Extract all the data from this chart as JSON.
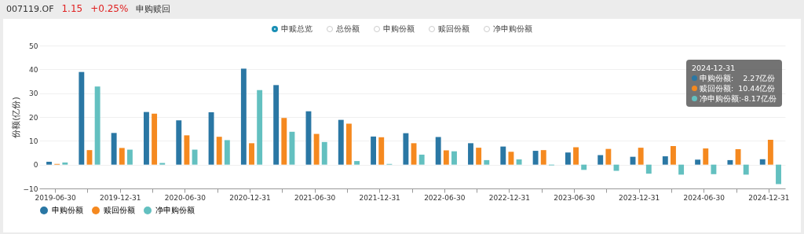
{
  "chart_data": {
    "type": "bar",
    "categories": [
      "2019-06-30",
      null,
      "2019-12-31",
      null,
      "2020-06-30",
      null,
      "2020-12-31",
      null,
      "2021-06-30",
      null,
      "2021-12-31",
      null,
      "2022-06-30",
      null,
      "2022-12-31",
      null,
      "2023-06-30",
      null,
      "2023-12-31",
      null,
      "2024-06-30",
      null,
      "2024-12-31"
    ],
    "series": [
      {
        "name": "申购份额",
        "color": "#2a77a4",
        "values": [
          1.2,
          38.9,
          13.3,
          22.1,
          18.6,
          22.0,
          40.3,
          33.4,
          22.4,
          18.8,
          11.8,
          13.2,
          11.6,
          9.0,
          7.6,
          5.8,
          5.1,
          4.0,
          3.3,
          3.5,
          2.1,
          1.9,
          2.27
        ]
      },
      {
        "name": "赎回份额",
        "color": "#f5891f",
        "values": [
          0.3,
          6.1,
          7.0,
          21.4,
          12.3,
          11.7,
          9.0,
          19.6,
          12.9,
          17.2,
          11.5,
          9.0,
          6.0,
          7.1,
          5.4,
          6.1,
          7.3,
          6.6,
          7.1,
          7.8,
          6.8,
          6.5,
          10.44
        ]
      },
      {
        "name": "净申购份额",
        "color": "#63c0c0",
        "values": [
          0.9,
          32.8,
          6.3,
          0.7,
          6.3,
          10.3,
          31.3,
          13.8,
          9.5,
          1.5,
          0.3,
          4.2,
          5.6,
          1.9,
          2.2,
          -0.3,
          -2.2,
          -2.6,
          -3.8,
          -4.2,
          -4.0,
          -4.2,
          -8.17
        ]
      }
    ],
    "ylabel": "份额(亿份)",
    "ylim": [
      -10,
      50
    ],
    "yticks": [
      -10,
      0,
      10,
      20,
      30,
      40,
      50
    ],
    "grid": "y",
    "legend": "bottom",
    "annotations": [
      "007119.OF",
      "1.15",
      "+0.25%",
      "申购赎回",
      "申赎总览",
      "总份额",
      "申购份额",
      "赎回份额",
      "净申购份额",
      "2024-12-31",
      "申购份额:    2.27亿份",
      "赎回份额:  10.44亿份",
      "净申购份额:-8.17亿份"
    ]
  }
}
